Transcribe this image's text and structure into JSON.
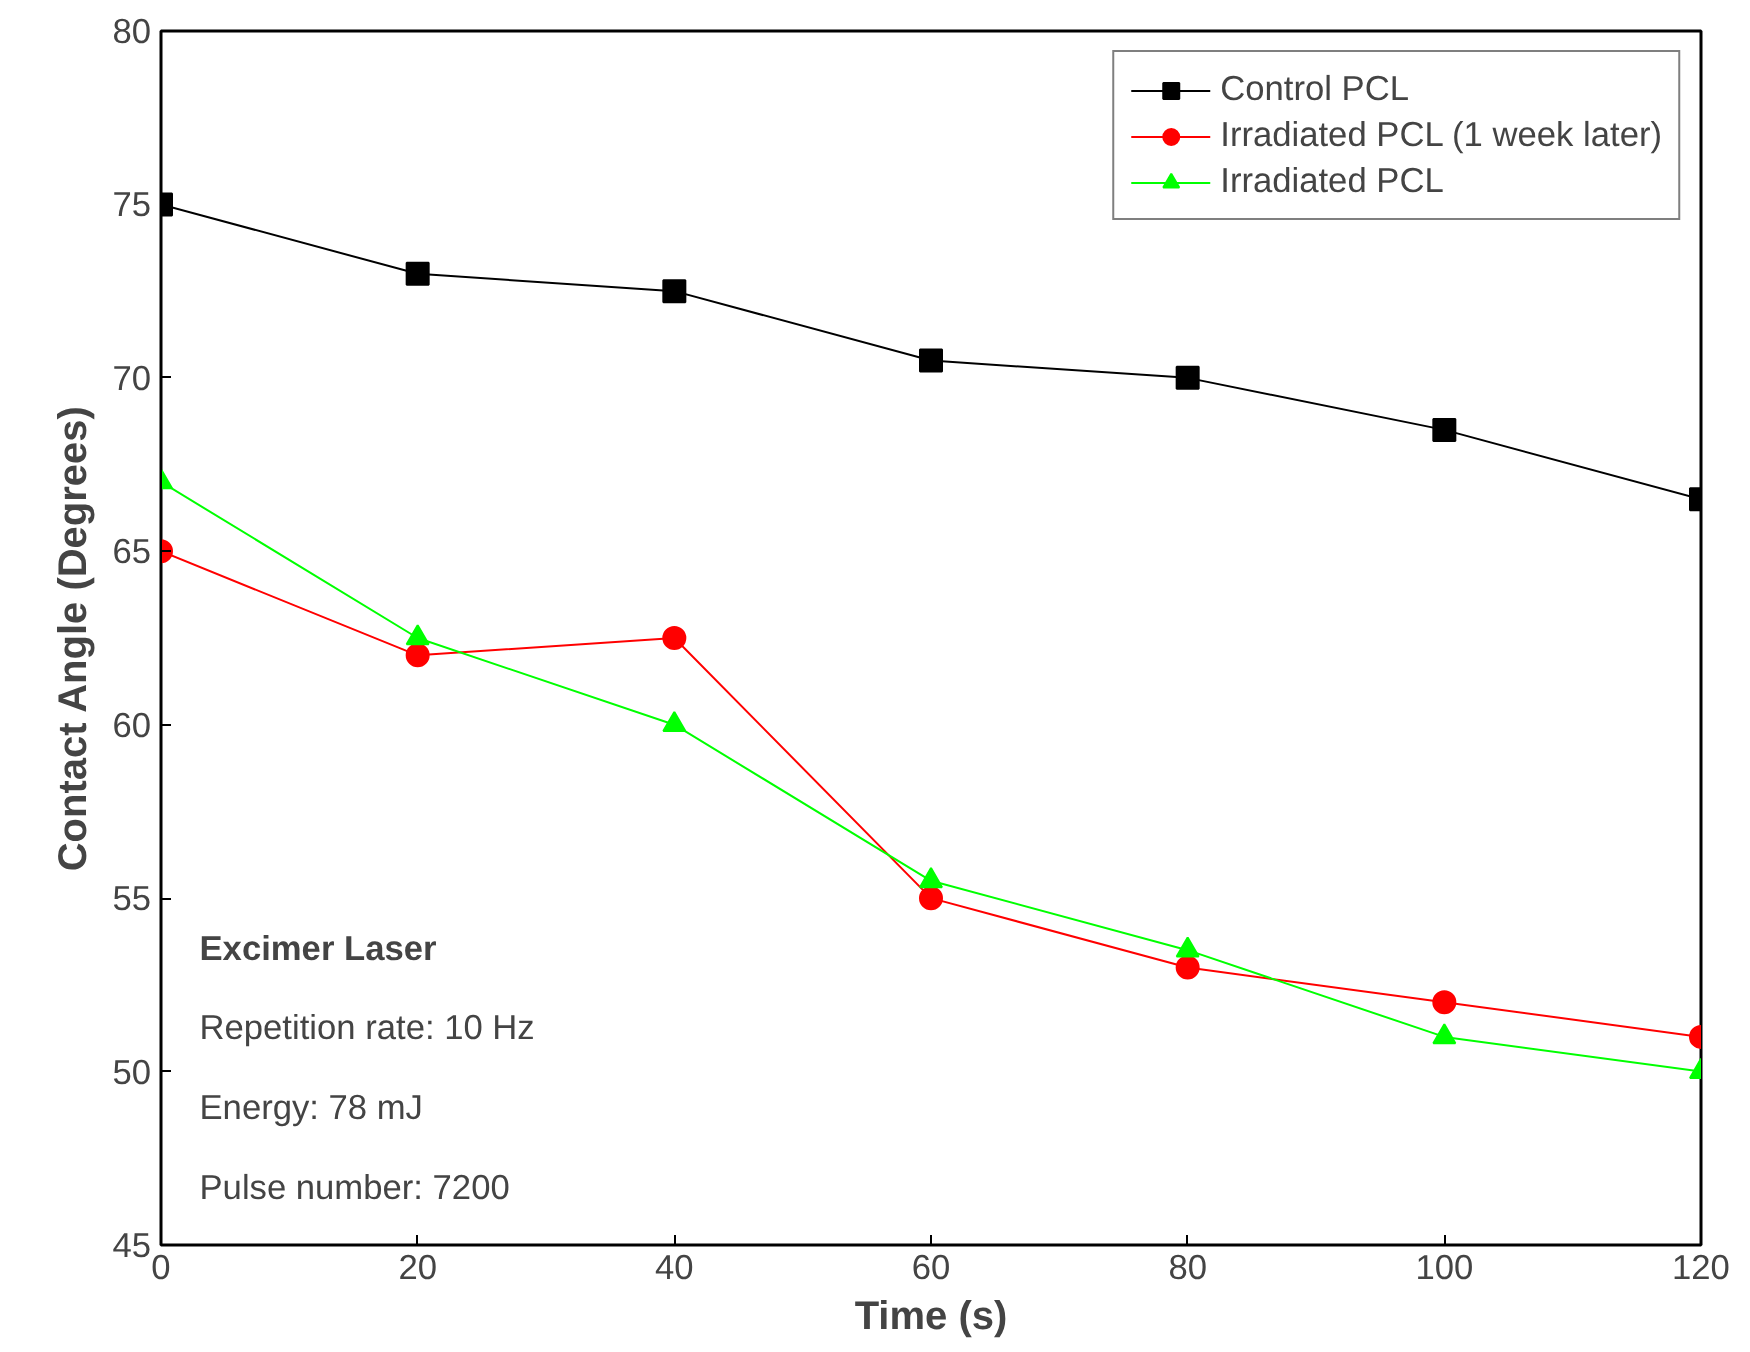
{
  "chart_data": {
    "type": "line",
    "xlabel": "Time (s)",
    "ylabel": "Contact Angle (Degrees)",
    "x": [
      0,
      20,
      40,
      60,
      80,
      100,
      120
    ],
    "series": [
      {
        "name": "Control PCL",
        "color": "#000000",
        "marker": "square",
        "values": [
          75,
          73,
          72.5,
          70.5,
          70,
          68.5,
          66.5
        ]
      },
      {
        "name": "Irradiated PCL (1 week later)",
        "color": "#ff0000",
        "marker": "circle",
        "values": [
          65,
          62,
          62.5,
          55,
          53,
          52,
          51
        ]
      },
      {
        "name": "Irradiated PCL",
        "color": "#00ff00",
        "marker": "triangle",
        "values": [
          67,
          62.5,
          60,
          55.5,
          53.5,
          51,
          50
        ]
      }
    ],
    "xlim": [
      0,
      120
    ],
    "xticks": [
      0,
      20,
      40,
      60,
      80,
      100,
      120
    ],
    "ylim": [
      45,
      80
    ],
    "yticks": [
      45,
      50,
      55,
      60,
      65,
      70,
      75,
      80
    ],
    "grid": false,
    "legend": "top right",
    "line_style": "solid",
    "annotations": [
      "Excimer Laser",
      "Repetition rate: 10 Hz",
      "Energy: 78 mJ",
      "Pulse number: 7200"
    ]
  }
}
